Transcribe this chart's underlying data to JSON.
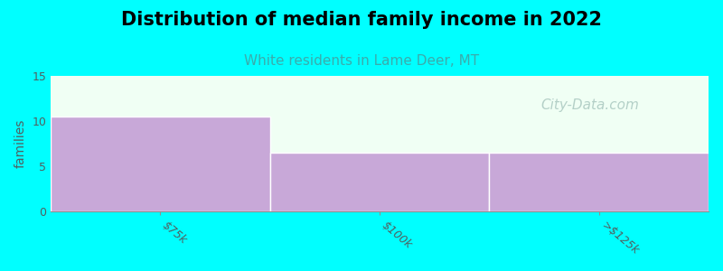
{
  "title": "Distribution of median family income in 2022",
  "subtitle": "White residents in Lame Deer, MT",
  "categories": [
    "$75k",
    "$100k",
    ">$125k"
  ],
  "values": [
    10.5,
    6.5,
    6.5
  ],
  "bar_color": "#c8a8d8",
  "bar_edge_color": "#ffffff",
  "background_color": "#00ffff",
  "plot_bg_color": "#f0fff4",
  "title_fontsize": 15,
  "subtitle_fontsize": 11,
  "subtitle_color": "#3aacac",
  "ylabel": "families",
  "ylabel_fontsize": 10,
  "ylim": [
    0,
    15
  ],
  "yticks": [
    0,
    5,
    10,
    15
  ],
  "watermark": "City-Data.com",
  "watermark_color": "#aac8c0",
  "watermark_fontsize": 11,
  "tick_label_fontsize": 9,
  "tick_label_color": "#506060"
}
